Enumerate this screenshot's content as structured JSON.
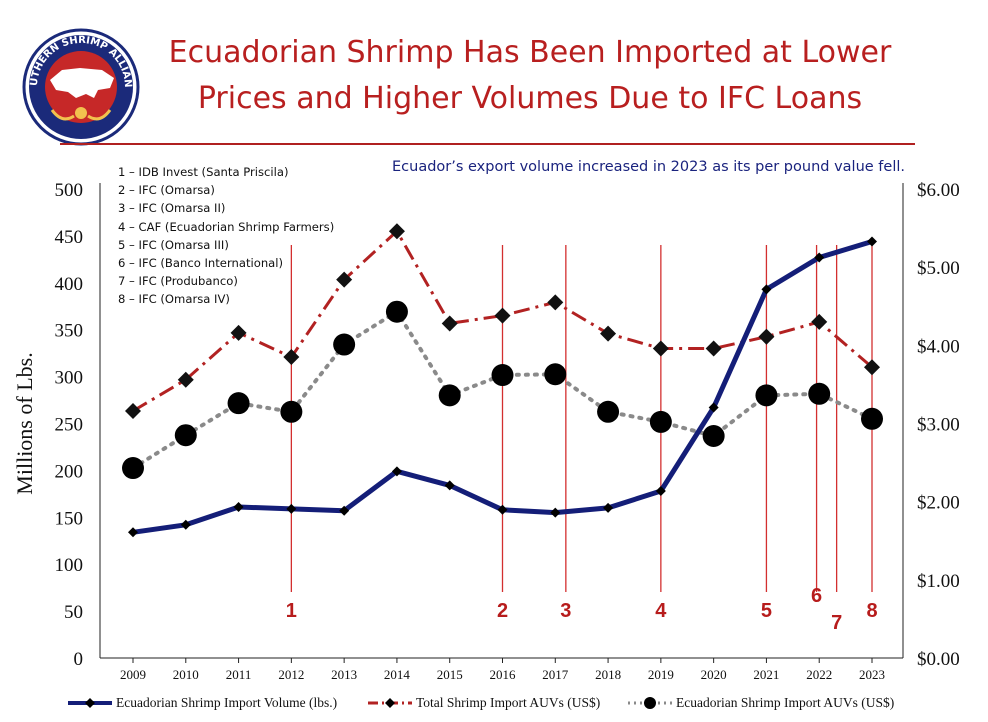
{
  "header": {
    "title_line1": "Ecuadorian Shrimp Has Been Imported at Lower",
    "title_line2": "Prices and Higher Volumes Due to IFC Loans",
    "subtitle": "Ecuador’s export volume increased in 2023 as its per pound value fell.",
    "logo_text": "SOUTHERN SHRIMP ALLIANCE"
  },
  "loans": [
    "1 – IDB Invest (Santa Priscila)",
    "2 – IFC (Omarsa)",
    "3 – IFC (Omarsa II)",
    "4 – CAF (Ecuadorian Shrimp Farmers)",
    "5 – IFC (Omarsa III)",
    "6 – IFC (Banco International)",
    "7 – IFC (Produbanco)",
    "8 – IFC (Omarsa IV)"
  ],
  "colors": {
    "title": "#b81f1f",
    "subtitle": "#1a237e",
    "volume": "#141e78",
    "total_auv": "#b22222",
    "ecuador_auv": "#000000",
    "markers": "#b71c1c"
  },
  "chart_data": {
    "type": "line",
    "x": [
      "2009",
      "2010",
      "2011",
      "2012",
      "2013",
      "2014",
      "2015",
      "2016",
      "2017",
      "2018",
      "2019",
      "2020",
      "2021",
      "2022",
      "2023"
    ],
    "ylabel": "Millions of Lbs.",
    "ylim": [
      0,
      500
    ],
    "y_ticks": [
      "0",
      "50",
      "100",
      "150",
      "200",
      "250",
      "300",
      "350",
      "400",
      "450",
      "500"
    ],
    "y2lim": [
      0,
      6
    ],
    "y2_ticks": [
      "$0.00",
      "$1.00",
      "$2.00",
      "$3.00",
      "$4.00",
      "$5.00",
      "$6.00"
    ],
    "series": [
      {
        "name": "Ecuadorian Shrimp Import Volume (lbs.)",
        "axis": "left",
        "style": "solid",
        "marker": "diamond-small",
        "values": [
          134,
          142,
          161,
          159,
          157,
          199,
          184,
          158,
          155,
          160,
          178,
          267,
          393,
          427,
          444
        ]
      },
      {
        "name": "Total Shrimp Import AUVs (US$)",
        "axis": "right",
        "style": "dashdot",
        "marker": "diamond",
        "values": [
          3.16,
          3.56,
          4.16,
          3.85,
          4.84,
          5.46,
          4.28,
          4.38,
          4.55,
          4.15,
          3.96,
          3.96,
          4.11,
          4.3,
          3.72
        ]
      },
      {
        "name": "Ecuadorian Shrimp Import AUVs (US$)",
        "axis": "right",
        "style": "dotted",
        "marker": "circle",
        "values": [
          2.43,
          2.85,
          3.26,
          3.15,
          4.01,
          4.43,
          3.36,
          3.62,
          3.63,
          3.15,
          3.02,
          2.84,
          3.36,
          3.38,
          3.06
        ]
      }
    ],
    "event_markers": [
      {
        "label": "1",
        "x": 2012.0
      },
      {
        "label": "2",
        "x": 2016.0
      },
      {
        "label": "3",
        "x": 2017.2
      },
      {
        "label": "4",
        "x": 2019.0
      },
      {
        "label": "5",
        "x": 2021.0
      },
      {
        "label": "6",
        "x": 2021.95
      },
      {
        "label": "7",
        "x": 2022.33
      },
      {
        "label": "8",
        "x": 2023.0
      }
    ],
    "legend_position": "bottom"
  }
}
